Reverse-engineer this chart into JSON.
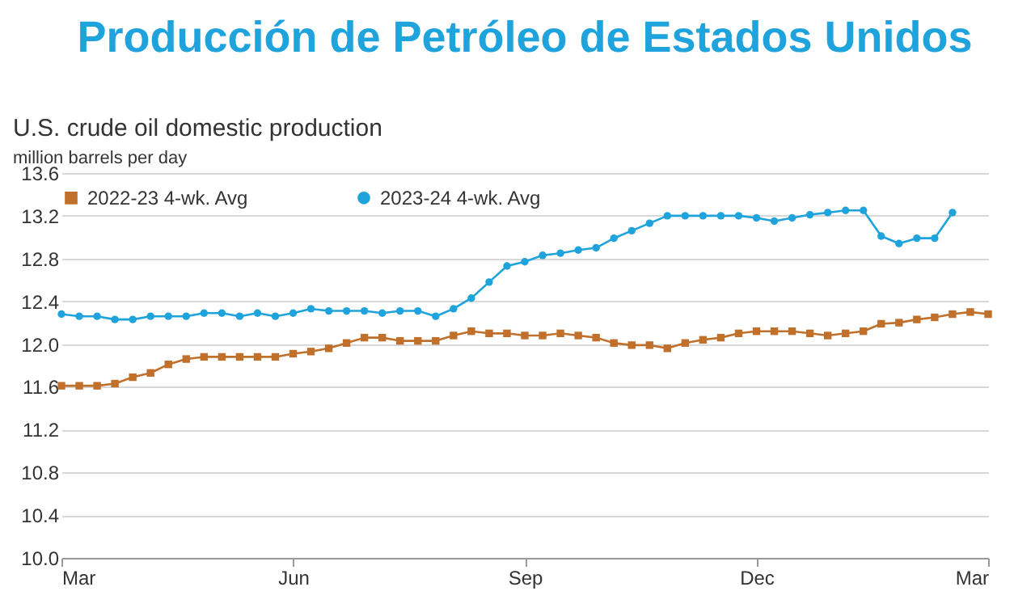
{
  "chart_data": {
    "type": "line",
    "title": "Producción de Petróleo de Estados Unidos",
    "subtitle": "U.S. crude oil domestic production",
    "ylabel": "million barrels per day",
    "categories": [
      "Mar",
      null,
      null,
      null,
      null,
      null,
      null,
      null,
      null,
      null,
      null,
      null,
      null,
      "Jun",
      null,
      null,
      null,
      null,
      null,
      null,
      null,
      null,
      null,
      null,
      null,
      null,
      "Sep",
      null,
      null,
      null,
      null,
      null,
      null,
      null,
      null,
      null,
      null,
      null,
      null,
      "Dec",
      null,
      null,
      null,
      null,
      null,
      null,
      null,
      null,
      null,
      null,
      null,
      null,
      "Mar"
    ],
    "series": [
      {
        "name": "2022-23  4-wk. Avg",
        "color": "#c0702a",
        "marker": "square",
        "values": [
          11.61,
          11.61,
          11.61,
          11.63,
          11.69,
          11.73,
          11.81,
          11.86,
          11.88,
          11.88,
          11.88,
          11.88,
          11.88,
          11.91,
          11.93,
          11.96,
          12.01,
          12.06,
          12.06,
          12.03,
          12.03,
          12.03,
          12.08,
          12.12,
          12.1,
          12.1,
          12.08,
          12.08,
          12.1,
          12.08,
          12.06,
          12.01,
          11.99,
          11.99,
          11.96,
          12.01,
          12.04,
          12.06,
          12.1,
          12.12,
          12.12,
          12.12,
          12.1,
          12.08,
          12.1,
          12.12,
          12.19,
          12.2,
          12.23,
          12.25,
          12.28,
          12.3,
          12.28
        ]
      },
      {
        "name": "2023-24  4-wk. Avg",
        "color": "#1fa3dc",
        "marker": "circle",
        "values": [
          12.28,
          12.26,
          12.26,
          12.23,
          12.23,
          12.26,
          12.26,
          12.26,
          12.29,
          12.29,
          12.26,
          12.29,
          12.26,
          12.29,
          12.33,
          12.31,
          12.31,
          12.31,
          12.29,
          12.31,
          12.31,
          12.26,
          12.33,
          12.43,
          12.58,
          12.73,
          12.77,
          12.83,
          12.85,
          12.88,
          12.9,
          12.99,
          13.06,
          13.13,
          13.2,
          13.2,
          13.2,
          13.2,
          13.2,
          13.18,
          13.15,
          13.18,
          13.21,
          13.23,
          13.25,
          13.25,
          13.01,
          12.94,
          12.99,
          12.99,
          13.23,
          null,
          null
        ]
      }
    ],
    "ylim": [
      10.0,
      13.6
    ],
    "yticks": [
      {
        "value": 10.0,
        "label": "10.0"
      },
      {
        "value": 10.4,
        "label": "10.4"
      },
      {
        "value": 10.8,
        "label": "10.8"
      },
      {
        "value": 11.2,
        "label": "11.2"
      },
      {
        "value": 11.6,
        "label": "11.6"
      },
      {
        "value": 12.0,
        "label": "12.0"
      },
      {
        "value": 12.4,
        "label": "12.4"
      },
      {
        "value": 12.8,
        "label": "12.8"
      },
      {
        "value": 13.2,
        "label": "13.2"
      },
      {
        "value": 13.6,
        "label": "13.6"
      }
    ],
    "grid": "y",
    "legend": "top",
    "line_style": "solid"
  }
}
